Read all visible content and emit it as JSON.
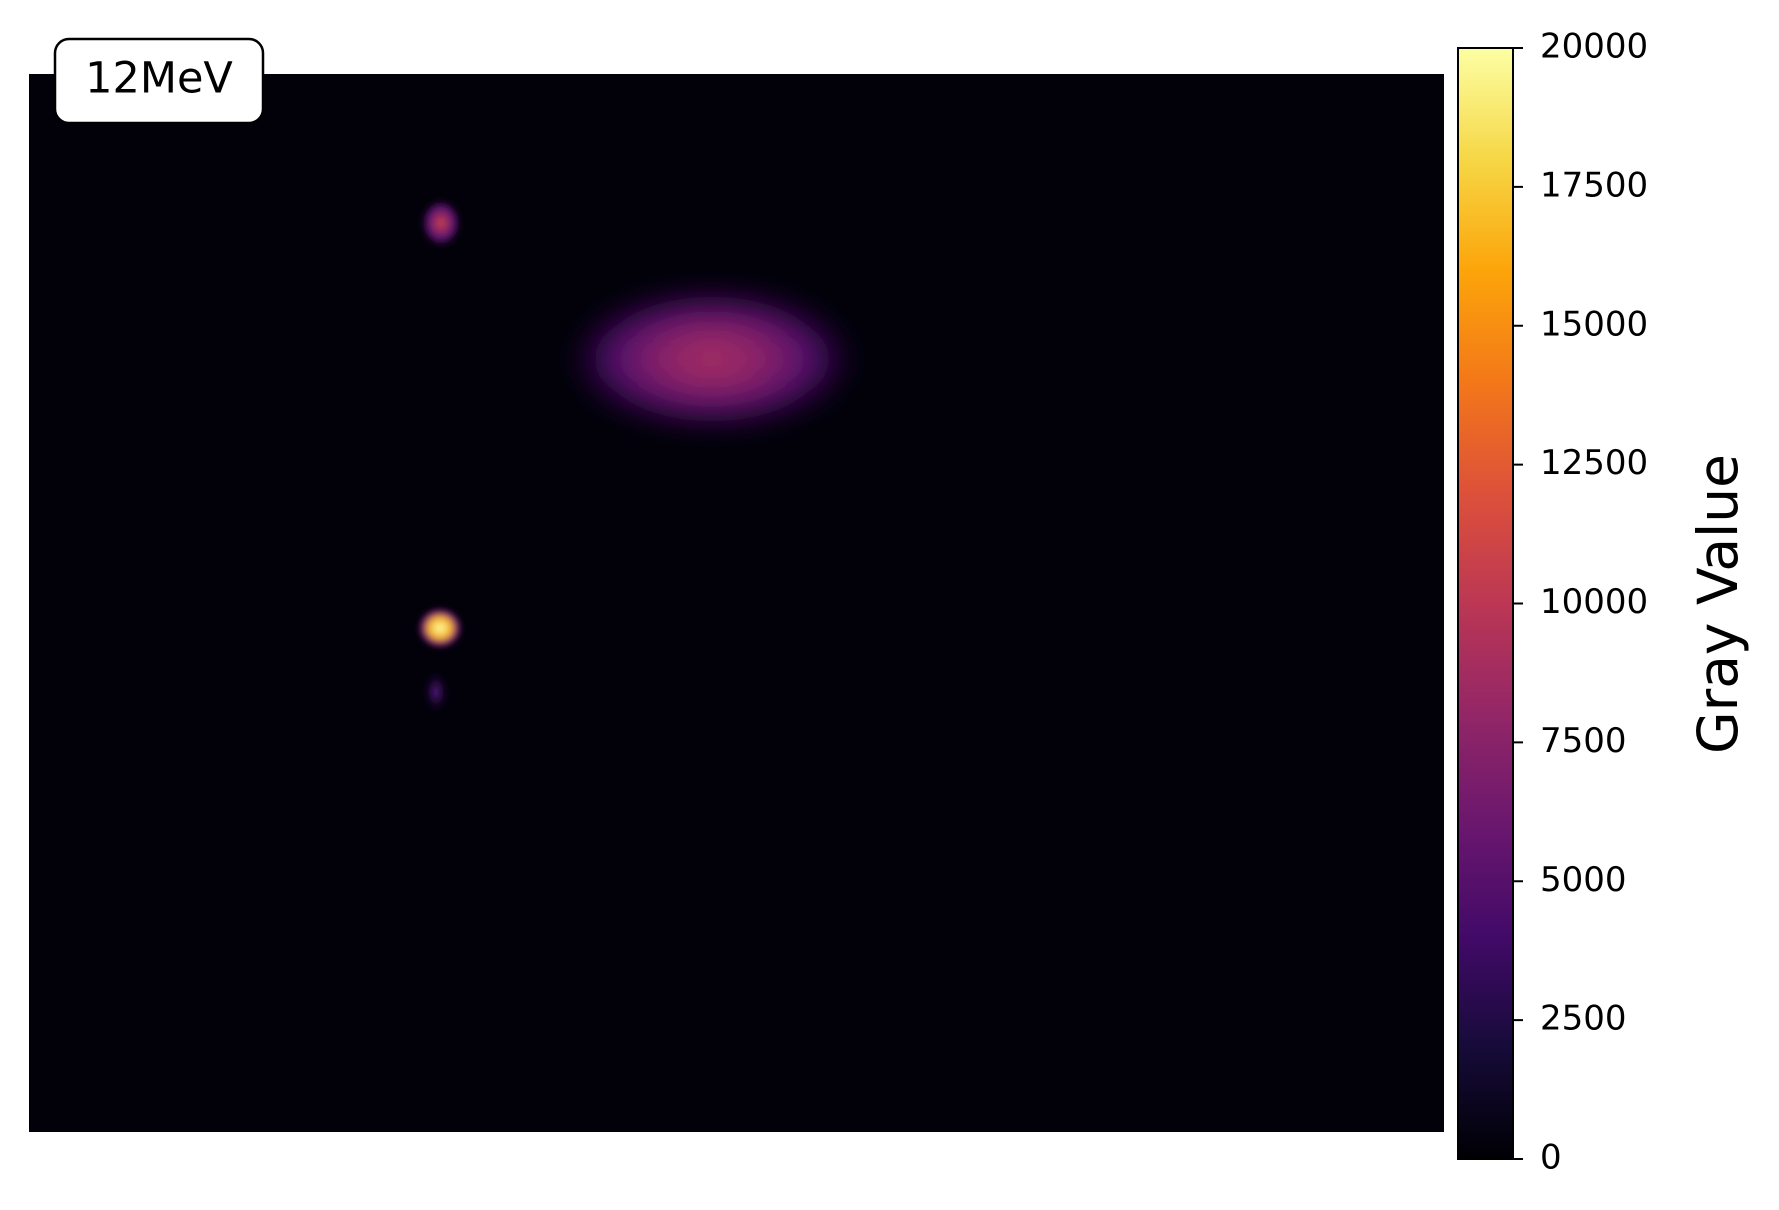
{
  "chart_data": {
    "type": "image",
    "annotation": "12MeV",
    "colorbar_label": "Gray Value",
    "colormap": "inferno",
    "clim": [
      0,
      20000
    ],
    "cticks": [
      0,
      2500,
      5000,
      7500,
      10000,
      12500,
      15000,
      17500,
      20000
    ]
  }
}
